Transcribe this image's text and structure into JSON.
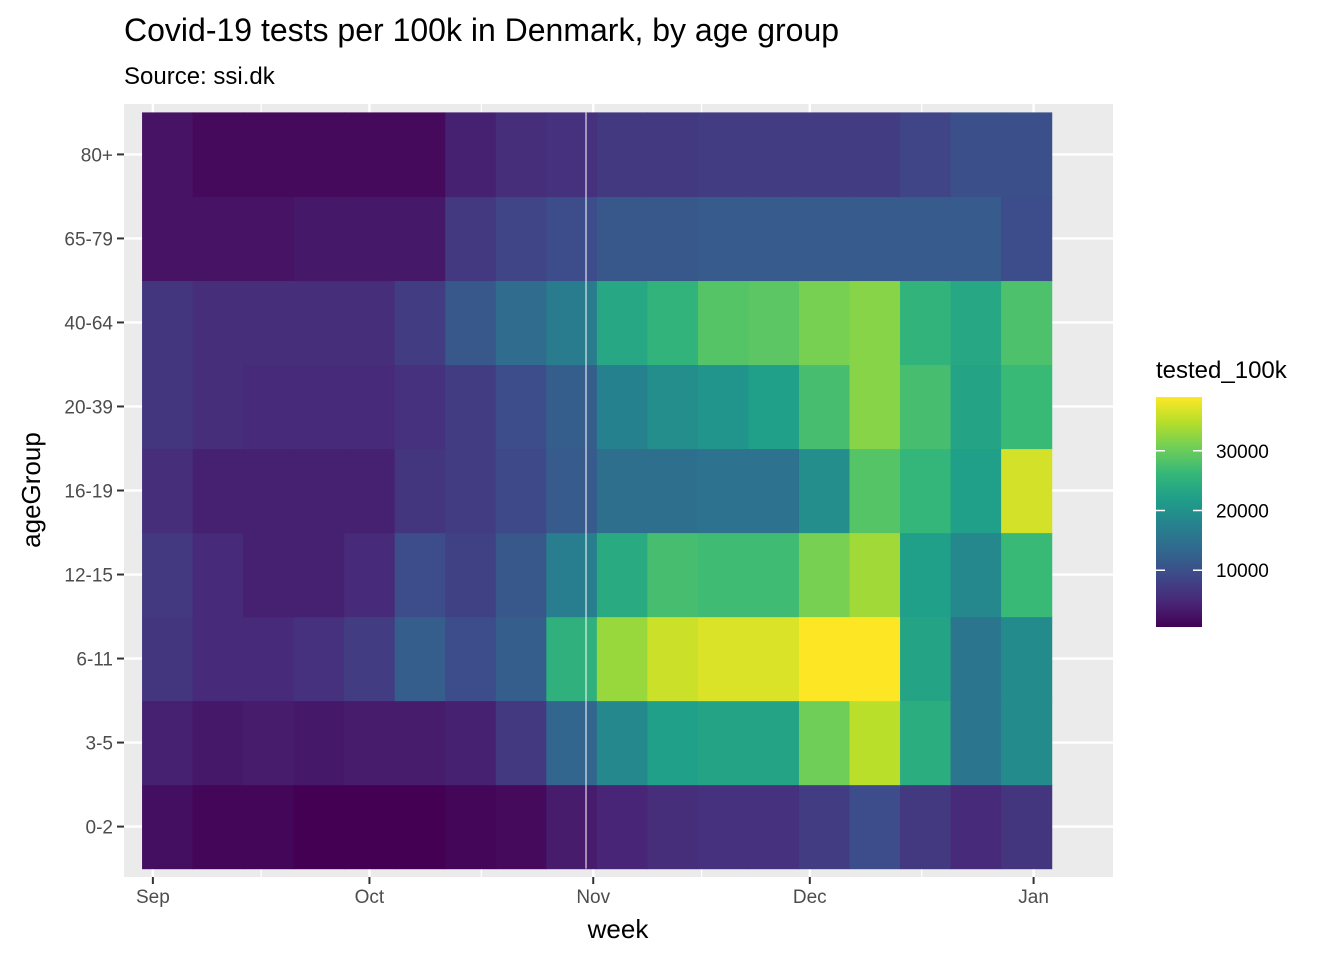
{
  "chart_data": {
    "type": "heatmap",
    "title": "Covid-19 tests per 100k in Denmark, by age group",
    "subtitle": "Source: ssi.dk",
    "xlabel": "week",
    "ylabel": "ageGroup",
    "x_ticks": [
      {
        "label": "Sep",
        "date": "2020-09-01"
      },
      {
        "label": "Oct",
        "date": "2020-10-01"
      },
      {
        "label": "Nov",
        "date": "2020-11-01"
      },
      {
        "label": "Dec",
        "date": "2020-12-01"
      },
      {
        "label": "Jan",
        "date": "2021-01-01"
      }
    ],
    "x_range": [
      "2020-08-28",
      "2021-01-12"
    ],
    "weeks": [
      "2020-09-03",
      "2020-09-10",
      "2020-09-17",
      "2020-09-24",
      "2020-10-01",
      "2020-10-08",
      "2020-10-15",
      "2020-10-22",
      "2020-10-29",
      "2020-11-05",
      "2020-11-12",
      "2020-11-19",
      "2020-11-26",
      "2020-12-03",
      "2020-12-10",
      "2020-12-17",
      "2020-12-24",
      "2020-12-31"
    ],
    "age_groups": [
      "0-2",
      "3-5",
      "6-11",
      "12-15",
      "16-19",
      "20-39",
      "40-64",
      "65-79",
      "80+"
    ],
    "values": {
      "80+": [
        2500,
        1500,
        1500,
        1500,
        1500,
        1500,
        4000,
        5500,
        6000,
        7000,
        7000,
        7500,
        7500,
        7500,
        7500,
        8500,
        10000,
        10000
      ],
      "65-79": [
        2500,
        2500,
        2500,
        3000,
        3000,
        3000,
        7000,
        8500,
        9500,
        11000,
        11000,
        11500,
        11500,
        11500,
        11500,
        11500,
        11500,
        9500
      ],
      "40-64": [
        6500,
        5500,
        5500,
        5500,
        5500,
        7500,
        11000,
        14000,
        16500,
        23500,
        25500,
        28500,
        29000,
        31000,
        32000,
        25500,
        23500,
        28000
      ],
      "20-39": [
        6500,
        5500,
        5000,
        5000,
        5000,
        6000,
        7500,
        9500,
        12000,
        17500,
        19500,
        20500,
        22000,
        27500,
        32000,
        27500,
        23000,
        26500
      ],
      "16-19": [
        5500,
        4000,
        4000,
        4000,
        4000,
        6500,
        7500,
        9000,
        11500,
        14500,
        14500,
        15000,
        15000,
        19500,
        28500,
        26000,
        22000,
        36500
      ],
      "12-15": [
        7000,
        5000,
        4000,
        4000,
        5000,
        9500,
        8000,
        11000,
        17000,
        24000,
        27500,
        27000,
        27000,
        31000,
        33500,
        22000,
        18500,
        26500
      ],
      "6-11": [
        6500,
        5000,
        5000,
        6000,
        7500,
        12000,
        9500,
        12000,
        25000,
        33000,
        36000,
        37000,
        37000,
        39000,
        39000,
        23000,
        15500,
        19000
      ],
      "3-5": [
        4000,
        3000,
        3500,
        3000,
        3500,
        3500,
        4000,
        7000,
        13000,
        18500,
        22000,
        23000,
        23000,
        30500,
        35000,
        24500,
        15500,
        19000
      ],
      "0-2": [
        2000,
        1000,
        1000,
        500,
        500,
        500,
        1000,
        1500,
        3500,
        4500,
        5500,
        6000,
        6000,
        7500,
        9500,
        7000,
        5000,
        6500
      ]
    },
    "color_scale": {
      "name": "viridis",
      "min": 500,
      "max": 39000,
      "stops": [
        "#440154",
        "#482878",
        "#3e4989",
        "#31688e",
        "#26828e",
        "#1f9e89",
        "#35b779",
        "#6ece58",
        "#b5de2b",
        "#fde725"
      ]
    },
    "legend": {
      "title": "tested_100k",
      "placement": "right",
      "ticks": [
        {
          "value": 10000,
          "label": "10000"
        },
        {
          "value": 20000,
          "label": "20000"
        },
        {
          "value": 30000,
          "label": "30000"
        }
      ]
    },
    "grid": true,
    "vline": {
      "date": "2020-10-31"
    }
  }
}
